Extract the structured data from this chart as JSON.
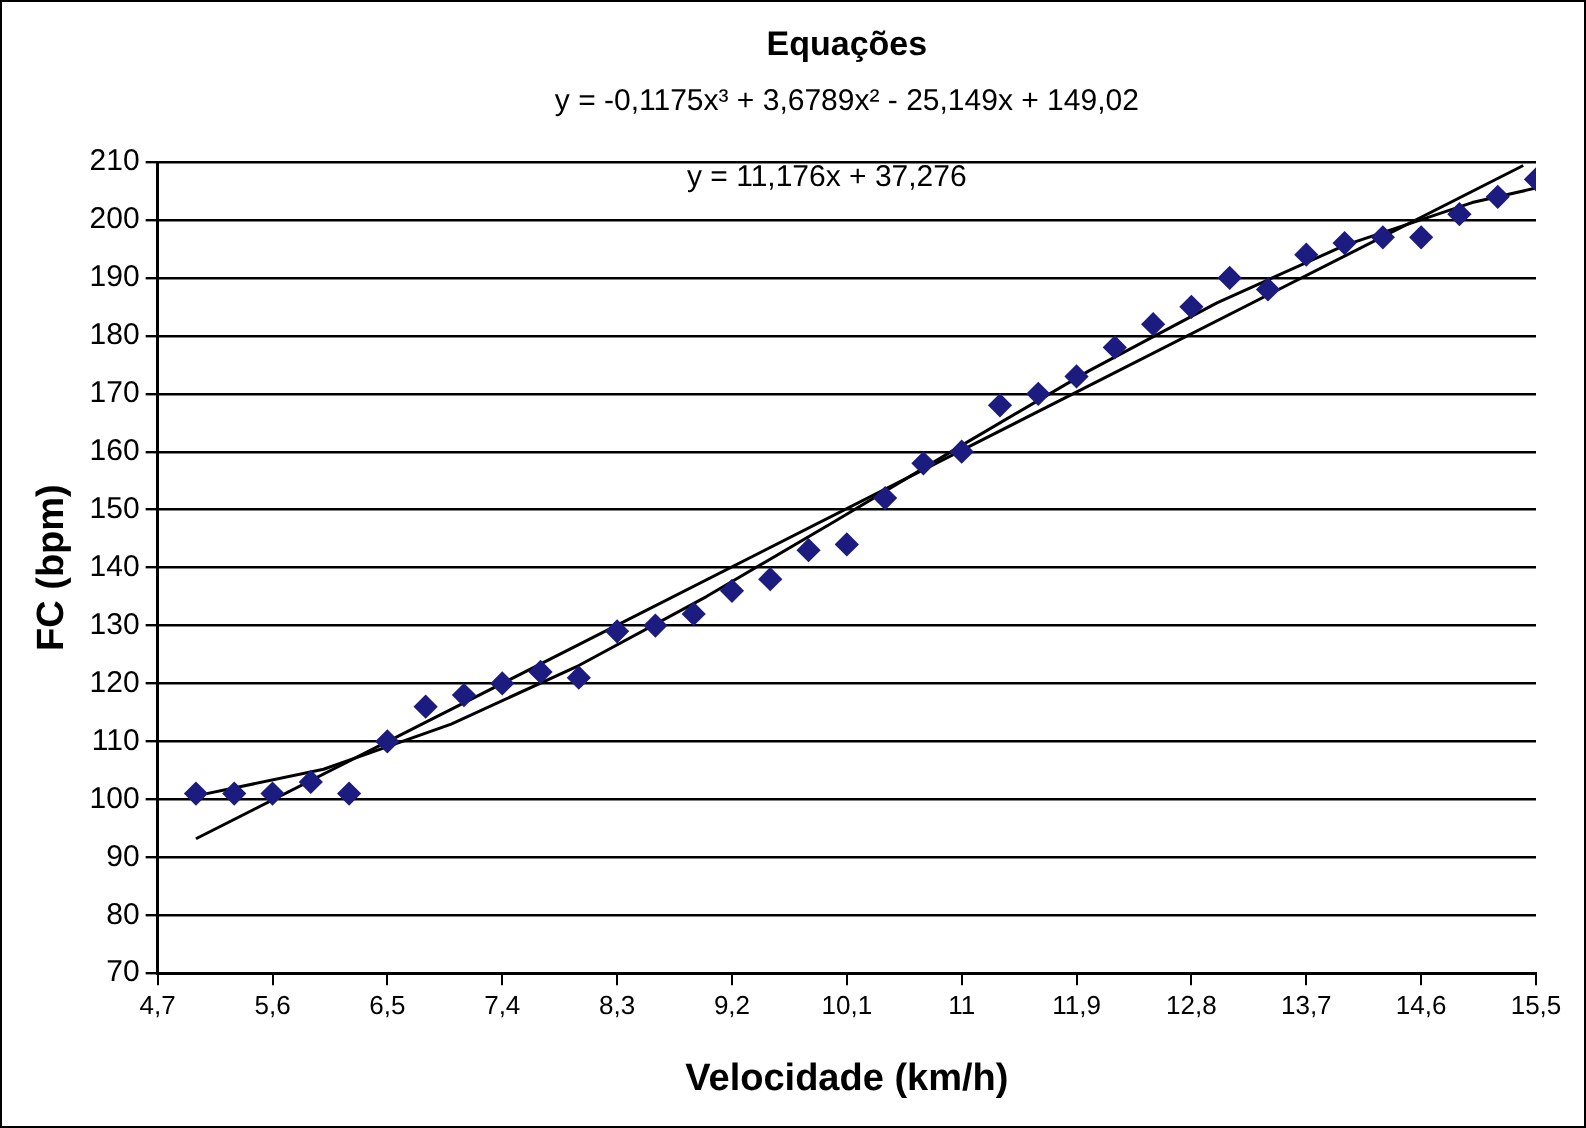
{
  "chart_data": {
    "type": "scatter",
    "title": "Equações",
    "xlabel": "Velocidade (km/h)",
    "ylabel": "FC (bpm)",
    "annotations": [
      "y = -0,1175x³ + 3,6789x² - 25,149x + 149,02",
      "y = 11,176x + 37,276"
    ],
    "xlim": [
      4.7,
      15.5
    ],
    "xticks": [
      {
        "value": 4.7,
        "label": "4,7"
      },
      {
        "value": 5.6,
        "label": "5,6"
      },
      {
        "value": 6.5,
        "label": "6,5"
      },
      {
        "value": 7.4,
        "label": "7,4"
      },
      {
        "value": 8.3,
        "label": "8,3"
      },
      {
        "value": 9.2,
        "label": "9,2"
      },
      {
        "value": 10.1,
        "label": "10,1"
      },
      11,
      {
        "value": 11.9,
        "label": "11,9"
      },
      {
        "value": 12.8,
        "label": "12,8"
      },
      {
        "value": 13.7,
        "label": "13,7"
      },
      {
        "value": 14.6,
        "label": "14,6"
      },
      {
        "value": 15.5,
        "label": "15,5"
      }
    ],
    "ylim": [
      70,
      210
    ],
    "yticks": [
      70,
      80,
      90,
      100,
      110,
      120,
      130,
      140,
      150,
      160,
      170,
      180,
      190,
      200,
      210
    ],
    "grid": "y",
    "legend": false,
    "series": [
      {
        "type": "scatter",
        "color": "#1c1c80",
        "marker": "diamond",
        "x": [
          5.0,
          5.3,
          5.6,
          5.9,
          6.2,
          6.5,
          6.8,
          7.1,
          7.4,
          7.7,
          8.0,
          8.3,
          8.6,
          8.9,
          9.2,
          9.5,
          9.8,
          10.1,
          10.4,
          10.7,
          11.0,
          11.3,
          11.6,
          11.9,
          12.2,
          12.5,
          12.8,
          13.1,
          13.4,
          13.7,
          14.0,
          14.3,
          14.6,
          14.9,
          15.2,
          15.5
        ],
        "values": [
          101,
          101,
          101,
          103,
          101,
          110,
          116,
          118,
          120,
          122,
          121,
          129,
          130,
          132,
          136,
          138,
          143,
          144,
          152,
          158,
          160,
          168,
          170,
          173,
          178,
          182,
          185,
          190,
          188,
          194,
          196,
          197,
          197,
          201,
          204,
          207
        ]
      },
      {
        "type": "line",
        "color": "#000000",
        "marker": "none",
        "x": [
          5,
          6,
          7,
          8,
          9,
          10,
          11,
          12,
          13,
          14,
          15,
          15.5
        ],
        "values": [
          100.6,
          105.2,
          113.0,
          123.1,
          135.0,
          147.9,
          161.1,
          174.0,
          185.7,
          195.6,
          203.0,
          205.5
        ]
      },
      {
        "type": "line",
        "color": "#000000",
        "marker": "none",
        "x": [
          5,
          15.4
        ],
        "values": [
          93.2,
          209.4
        ]
      }
    ]
  }
}
